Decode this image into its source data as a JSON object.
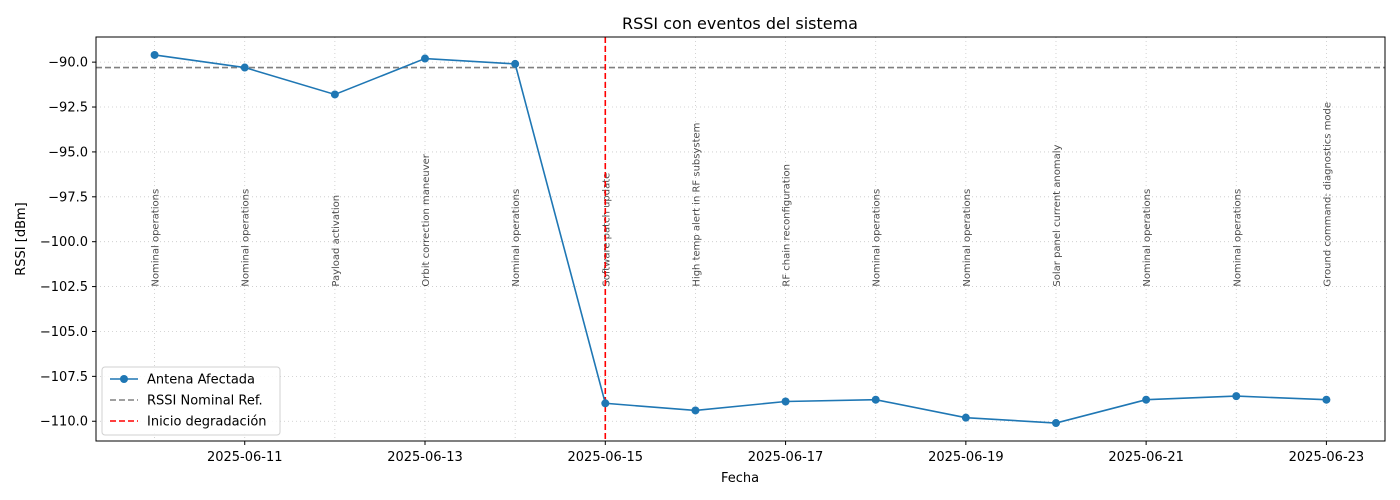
{
  "chart_data": {
    "type": "line",
    "title": "RSSI con eventos del sistema",
    "xlabel": "Fecha",
    "ylabel": "RSSI [dBm]",
    "x": [
      "2025-06-10",
      "2025-06-11",
      "2025-06-12",
      "2025-06-13",
      "2025-06-14",
      "2025-06-15",
      "2025-06-16",
      "2025-06-17",
      "2025-06-18",
      "2025-06-19",
      "2025-06-20",
      "2025-06-21",
      "2025-06-22",
      "2025-06-23"
    ],
    "xlim": [
      "2025-06-09T08:24",
      "2025-06-23T15:36"
    ],
    "ylim": [
      -111.1,
      -88.6
    ],
    "x_ticks": [
      "2025-06-11",
      "2025-06-13",
      "2025-06-15",
      "2025-06-17",
      "2025-06-19",
      "2025-06-21",
      "2025-06-23"
    ],
    "y_ticks": [
      -90.0,
      -92.5,
      -95.0,
      -97.5,
      -100.0,
      -102.5,
      -105.0,
      -107.5,
      -110.0
    ],
    "y_tick_labels": [
      "−90.0",
      "−92.5",
      "−95.0",
      "−97.5",
      "−100.0",
      "−102.5",
      "−105.0",
      "−107.5",
      "−110.0"
    ],
    "grid": true,
    "series": [
      {
        "name": "Antena Afectada",
        "color": "#1f77b4",
        "marker": "circle",
        "values": [
          -89.6,
          -90.3,
          -91.8,
          -89.8,
          -90.1,
          -109.0,
          -109.4,
          -108.9,
          -108.8,
          -109.8,
          -110.1,
          -108.8,
          -108.6,
          -108.8
        ]
      }
    ],
    "reference_line": {
      "name": "RSSI Nominal Ref.",
      "value": -90.3,
      "color": "#808080",
      "style": "dashed"
    },
    "event_line": {
      "name": "Inicio degradación",
      "x": "2025-06-15",
      "color": "#ff0000",
      "style": "dashed"
    },
    "events": [
      "Nominal operations",
      "Nominal operations",
      "Payload activation",
      "Orbit correction maneuver",
      "Nominal operations",
      "Software patch update",
      "High temp alert in RF subsystem",
      "RF chain reconfiguration",
      "Nominal operations",
      "Nominal operations",
      "Solar panel current anomaly",
      "Nominal operations",
      "Nominal operations",
      "Ground command: diagnostics mode"
    ],
    "legend": {
      "position": "lower-left",
      "entries": [
        "Antena Afectada",
        "RSSI Nominal Ref.",
        "Inicio degradación"
      ]
    }
  }
}
